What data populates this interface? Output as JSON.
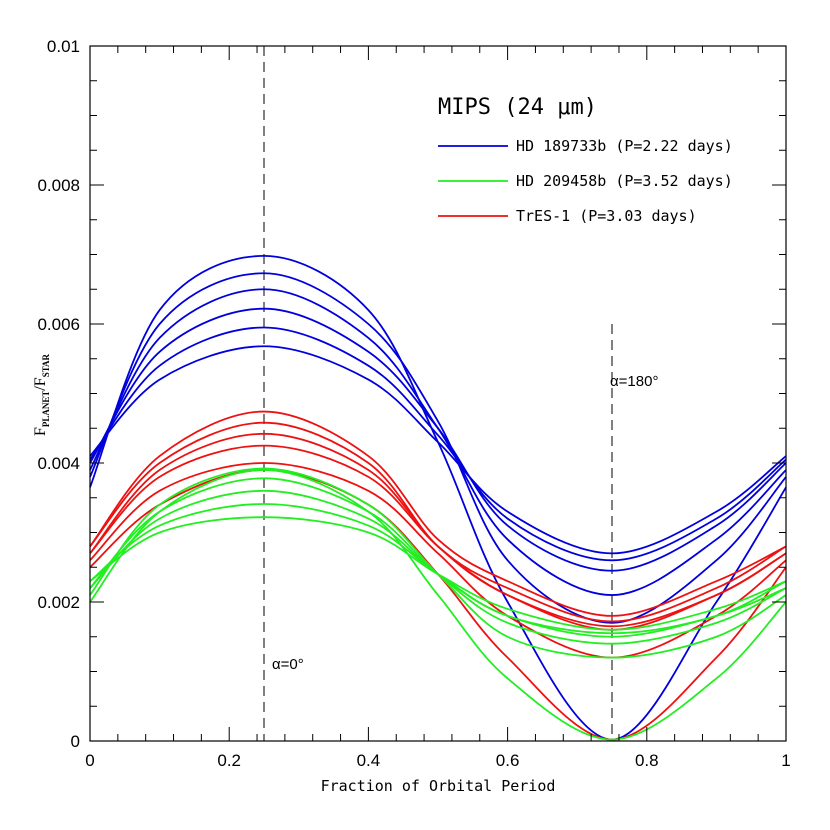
{
  "chart_data": {
    "type": "line",
    "xlabel": "Fraction of Orbital Period",
    "ylabel": {
      "main": "F",
      "sub1": "PLANET",
      "sep": "/F",
      "sub2": "STAR"
    },
    "xlim": [
      0,
      1
    ],
    "ylim": [
      0,
      0.01
    ],
    "xticks": [
      "0",
      "0.2",
      "0.4",
      "0.6",
      "0.8",
      "1"
    ],
    "yticks": [
      "0",
      "0.002",
      "0.004",
      "0.006",
      "0.008",
      "0.01"
    ],
    "legend": {
      "title": "MIPS (24 μm)",
      "position": "top-right",
      "entries": [
        {
          "label": "HD 189733b (P=2.22 days)",
          "color": "#0000dd"
        },
        {
          "label": "HD 209458b (P=3.52 days)",
          "color": "#22ee22"
        },
        {
          "label": "TrES-1 (P=3.03 days)",
          "color": "#ee1111"
        }
      ]
    },
    "annotations": [
      {
        "text": "α=0°",
        "x": 0.25
      },
      {
        "text": "α=180°",
        "x": 0.75
      }
    ],
    "vlines": [
      {
        "x": 0.25,
        "y_top": 0.01
      },
      {
        "x": 0.75,
        "y_top": 0.006
      }
    ],
    "series": [
      {
        "group": "HD 189733b",
        "color": "#0000dd",
        "x": [
          0,
          0.1,
          0.25,
          0.4,
          0.5,
          0.6,
          0.75,
          0.9,
          1
        ],
        "y": [
          0.00365,
          0.0062,
          0.00698,
          0.0062,
          0.0043,
          0.002,
          2e-05,
          0.002,
          0.00365
        ]
      },
      {
        "group": "HD 189733b",
        "color": "#0000dd",
        "x": [
          0,
          0.1,
          0.25,
          0.4,
          0.5,
          0.6,
          0.75,
          0.9,
          1
        ],
        "y": [
          0.0038,
          0.006,
          0.00673,
          0.006,
          0.0046,
          0.0026,
          0.0017,
          0.0026,
          0.0038
        ]
      },
      {
        "group": "HD 189733b",
        "color": "#0000dd",
        "x": [
          0,
          0.1,
          0.25,
          0.4,
          0.5,
          0.6,
          0.75,
          0.9,
          1
        ],
        "y": [
          0.0039,
          0.0058,
          0.0065,
          0.0058,
          0.0045,
          0.0029,
          0.0021,
          0.0029,
          0.0039
        ]
      },
      {
        "group": "HD 189733b",
        "color": "#0000dd",
        "x": [
          0,
          0.1,
          0.25,
          0.4,
          0.5,
          0.6,
          0.75,
          0.9,
          1
        ],
        "y": [
          0.004,
          0.0056,
          0.00622,
          0.0056,
          0.0045,
          0.0031,
          0.00245,
          0.0031,
          0.004
        ]
      },
      {
        "group": "HD 189733b",
        "color": "#0000dd",
        "x": [
          0,
          0.1,
          0.25,
          0.4,
          0.5,
          0.6,
          0.75,
          0.9,
          1
        ],
        "y": [
          0.00405,
          0.0054,
          0.00595,
          0.0054,
          0.0044,
          0.0032,
          0.0026,
          0.0032,
          0.00405
        ]
      },
      {
        "group": "HD 189733b",
        "color": "#0000dd",
        "x": [
          0,
          0.1,
          0.25,
          0.4,
          0.5,
          0.6,
          0.75,
          0.9,
          1
        ],
        "y": [
          0.0041,
          0.0052,
          0.00568,
          0.0052,
          0.0043,
          0.0033,
          0.0027,
          0.0033,
          0.0041
        ]
      },
      {
        "group": "TrES-1",
        "color": "#ee1111",
        "x": [
          0,
          0.1,
          0.25,
          0.4,
          0.5,
          0.6,
          0.75,
          0.9,
          1
        ],
        "y": [
          0.0025,
          0.0034,
          0.0039,
          0.0034,
          0.0024,
          0.0012,
          2e-05,
          0.0012,
          0.0025
        ]
      },
      {
        "group": "TrES-1",
        "color": "#ee1111",
        "x": [
          0,
          0.1,
          0.25,
          0.4,
          0.5,
          0.6,
          0.75,
          0.9,
          1
        ],
        "y": [
          0.0026,
          0.0036,
          0.004,
          0.0036,
          0.0027,
          0.0018,
          0.0012,
          0.0018,
          0.0026
        ]
      },
      {
        "group": "TrES-1",
        "color": "#ee1111",
        "x": [
          0,
          0.1,
          0.25,
          0.4,
          0.5,
          0.6,
          0.75,
          0.9,
          1
        ],
        "y": [
          0.0027,
          0.0038,
          0.00425,
          0.0038,
          0.0028,
          0.0021,
          0.0016,
          0.0021,
          0.0027
        ]
      },
      {
        "group": "TrES-1",
        "color": "#ee1111",
        "x": [
          0,
          0.1,
          0.25,
          0.4,
          0.5,
          0.6,
          0.75,
          0.9,
          1
        ],
        "y": [
          0.0027,
          0.0039,
          0.00442,
          0.0039,
          0.0028,
          0.0021,
          0.00165,
          0.0021,
          0.0027
        ]
      },
      {
        "group": "TrES-1",
        "color": "#ee1111",
        "x": [
          0,
          0.1,
          0.25,
          0.4,
          0.5,
          0.6,
          0.75,
          0.9,
          1
        ],
        "y": [
          0.0028,
          0.004,
          0.00458,
          0.004,
          0.0028,
          0.0022,
          0.00172,
          0.0022,
          0.0028
        ]
      },
      {
        "group": "TrES-1",
        "color": "#ee1111",
        "x": [
          0,
          0.1,
          0.25,
          0.4,
          0.5,
          0.6,
          0.75,
          0.9,
          1
        ],
        "y": [
          0.0028,
          0.0041,
          0.00474,
          0.0041,
          0.0029,
          0.0023,
          0.0018,
          0.0023,
          0.0028
        ]
      },
      {
        "group": "HD 209458b",
        "color": "#22ee22",
        "x": [
          0,
          0.1,
          0.25,
          0.4,
          0.5,
          0.6,
          0.75,
          0.9,
          1
        ],
        "y": [
          0.002,
          0.0033,
          0.0039,
          0.0033,
          0.0021,
          0.0009,
          2e-05,
          0.0009,
          0.002
        ]
      },
      {
        "group": "HD 209458b",
        "color": "#22ee22",
        "x": [
          0,
          0.1,
          0.25,
          0.4,
          0.5,
          0.6,
          0.75,
          0.9,
          1
        ],
        "y": [
          0.0021,
          0.0034,
          0.00392,
          0.0034,
          0.0024,
          0.0015,
          0.0012,
          0.0015,
          0.0021
        ]
      },
      {
        "group": "HD 209458b",
        "color": "#22ee22",
        "x": [
          0,
          0.1,
          0.25,
          0.4,
          0.5,
          0.6,
          0.75,
          0.9,
          1
        ],
        "y": [
          0.0022,
          0.0033,
          0.00378,
          0.0033,
          0.0024,
          0.0017,
          0.0014,
          0.0017,
          0.0022
        ]
      },
      {
        "group": "HD 209458b",
        "color": "#22ee22",
        "x": [
          0,
          0.1,
          0.25,
          0.4,
          0.5,
          0.6,
          0.75,
          0.9,
          1
        ],
        "y": [
          0.0022,
          0.0032,
          0.0036,
          0.0032,
          0.0024,
          0.0018,
          0.0015,
          0.0018,
          0.0022
        ]
      },
      {
        "group": "HD 209458b",
        "color": "#22ee22",
        "x": [
          0,
          0.1,
          0.25,
          0.4,
          0.5,
          0.6,
          0.75,
          0.9,
          1
        ],
        "y": [
          0.0023,
          0.0031,
          0.00341,
          0.0031,
          0.0024,
          0.0018,
          0.00155,
          0.0018,
          0.0023
        ]
      },
      {
        "group": "HD 209458b",
        "color": "#22ee22",
        "x": [
          0,
          0.1,
          0.25,
          0.4,
          0.5,
          0.6,
          0.75,
          0.9,
          1
        ],
        "y": [
          0.0023,
          0.003,
          0.00322,
          0.003,
          0.0024,
          0.0019,
          0.0016,
          0.0019,
          0.0023
        ]
      }
    ]
  }
}
